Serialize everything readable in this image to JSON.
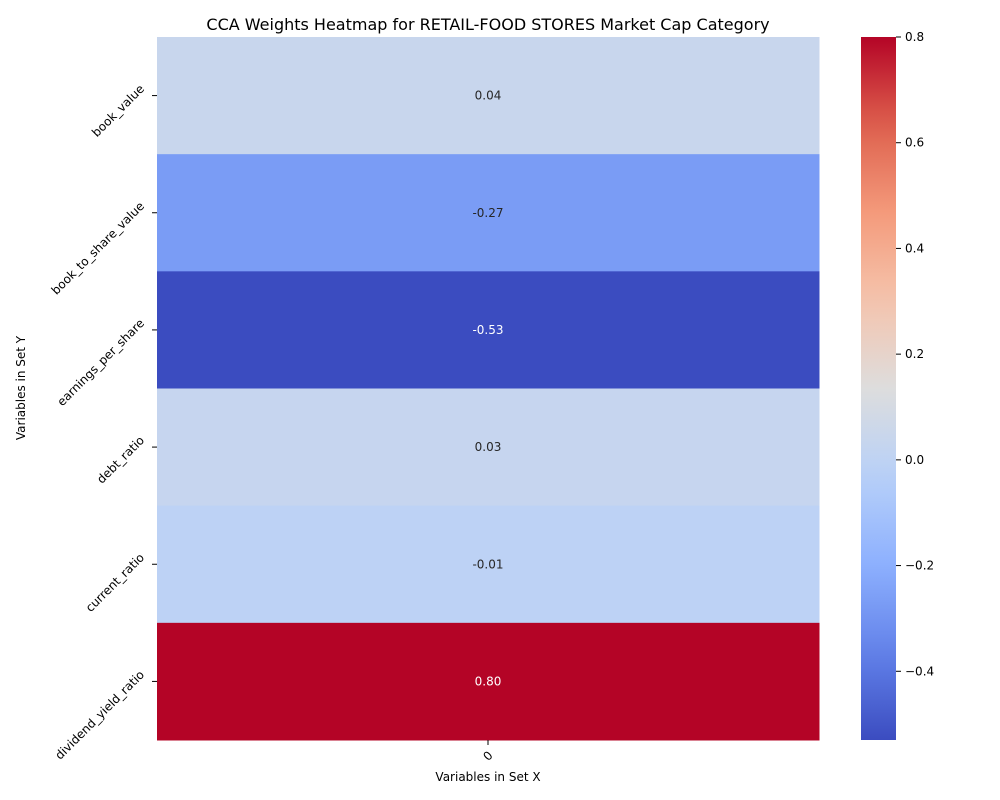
{
  "chart_data": {
    "type": "heatmap",
    "title": "CCA Weights Heatmap for RETAIL-FOOD STORES Market Cap Category",
    "xlabel": "Variables in Set X",
    "ylabel": "Variables in Set Y",
    "x_categories": [
      "0"
    ],
    "y_categories": [
      "book_value",
      "book_to_share_value",
      "earnings_per_share",
      "debt_ratio",
      "current_ratio",
      "dividend_yield_ratio"
    ],
    "values": [
      [
        0.04
      ],
      [
        -0.27
      ],
      [
        -0.53
      ],
      [
        0.03
      ],
      [
        -0.01
      ],
      [
        0.8
      ]
    ],
    "value_labels": [
      "0.04",
      "-0.27",
      "-0.53",
      "0.03",
      "-0.01",
      "0.80"
    ],
    "colormap": "coolwarm",
    "colorbar": {
      "vmin": -0.53,
      "vmax": 0.8,
      "ticks": [
        -0.4,
        -0.2,
        0.0,
        0.2,
        0.4,
        0.6,
        0.8
      ],
      "tick_labels": [
        "−0.4",
        "−0.2",
        "0.0",
        "0.2",
        "0.4",
        "0.6",
        "0.8"
      ]
    },
    "grid": false,
    "legend": "colorbar-right"
  }
}
